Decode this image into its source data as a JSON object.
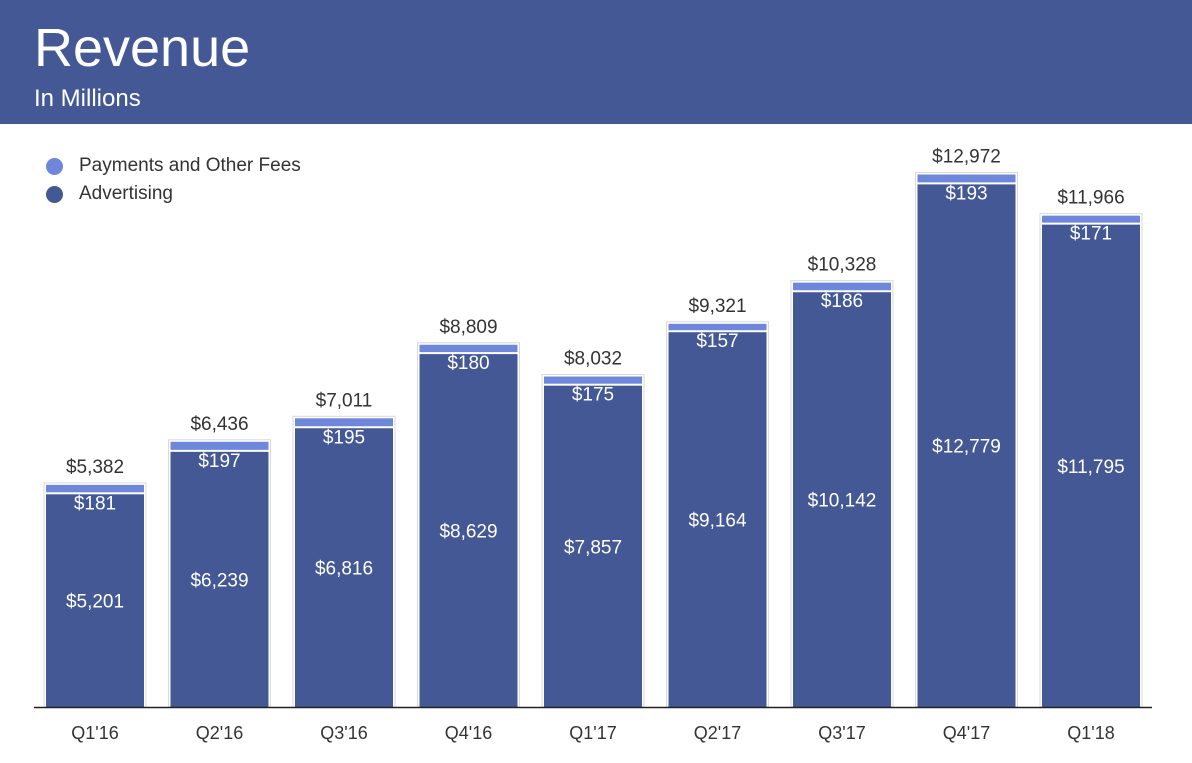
{
  "header": {
    "title": "Revenue",
    "subtitle": "In Millions"
  },
  "colors": {
    "header_bg": "#435894",
    "advertising": "#435894",
    "payments": "#6f87da",
    "axis": "#222222",
    "label_dark": "#333333",
    "label_light": "#ffffff"
  },
  "legend": {
    "items": [
      {
        "label": "Payments and Other Fees",
        "color": "#6f87da"
      },
      {
        "label": "Advertising",
        "color": "#435894"
      }
    ]
  },
  "chart_data": {
    "type": "bar",
    "stacked": true,
    "categories": [
      "Q1'16",
      "Q2'16",
      "Q3'16",
      "Q4'16",
      "Q1'17",
      "Q2'17",
      "Q3'17",
      "Q4'17",
      "Q1'18"
    ],
    "series": [
      {
        "name": "Advertising",
        "values": [
          5201,
          6239,
          6816,
          8629,
          7857,
          9164,
          10142,
          12779,
          11795
        ],
        "labels": [
          "$5,201",
          "$6,239",
          "$6,816",
          "$8,629",
          "$7,857",
          "$9,164",
          "$10,142",
          "$12,779",
          "$11,795"
        ]
      },
      {
        "name": "Payments and Other Fees",
        "values": [
          181,
          197,
          195,
          180,
          175,
          157,
          186,
          193,
          171
        ],
        "labels": [
          "$181",
          "$197",
          "$195",
          "$180",
          "$175",
          "$157",
          "$186",
          "$193",
          "$171"
        ]
      }
    ],
    "totals": [
      5382,
      6436,
      7011,
      8809,
      8032,
      9321,
      10328,
      12972,
      11966
    ],
    "total_labels": [
      "$5,382",
      "$6,436",
      "$7,011",
      "$8,809",
      "$8,032",
      "$9,321",
      "$10,328",
      "$12,972",
      "$11,966"
    ],
    "title": "Revenue",
    "subtitle": "In Millions",
    "ylim": [
      0,
      13400
    ],
    "grid": false,
    "legend_position": "top-left"
  }
}
